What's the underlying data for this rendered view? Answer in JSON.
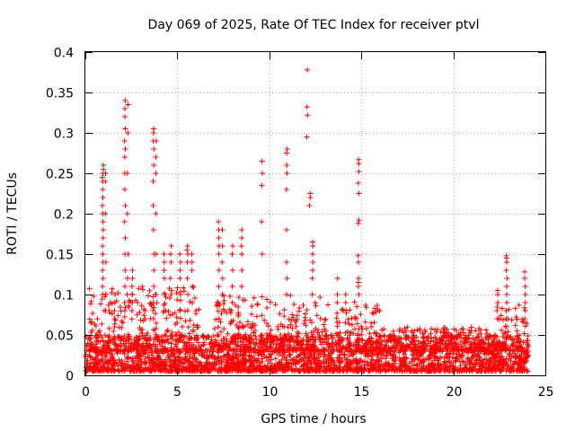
{
  "chart_data": {
    "type": "scatter",
    "title": "Day 069 of 2025, Rate Of TEC Index for receiver ptvl",
    "xlabel": "GPS time / hours",
    "ylabel": "ROTI / TECUs",
    "xlim": [
      0,
      25
    ],
    "ylim": [
      0,
      0.4
    ],
    "xticks": [
      0,
      5,
      10,
      15,
      20,
      25
    ],
    "xtick_labels": [
      "0",
      "5",
      "10",
      "15",
      "20",
      "25"
    ],
    "yticks": [
      0,
      0.05,
      0.1,
      0.15,
      0.2,
      0.25,
      0.3,
      0.35,
      0.4
    ],
    "ytick_labels": [
      "0",
      "0.05",
      "0.1",
      "0.15",
      "0.2",
      "0.25",
      "0.3",
      "0.35",
      "0.4"
    ],
    "grid": true,
    "marker": "+",
    "marker_color": "#ff0000",
    "series": [
      {
        "name": "ROTI",
        "note": "dense background of values mostly between 0.005 and 0.05 TECU/min from 0 to 24 h; enhanced spikes listed below",
        "baseline_range": [
          0.005,
          0.05
        ],
        "x_range": [
          0,
          24.1
        ],
        "spikes": [
          {
            "x": 0.95,
            "values": [
              0.26,
              0.255,
              0.25,
              0.245,
              0.24,
              0.23,
              0.22,
              0.21,
              0.2,
              0.19,
              0.18,
              0.17,
              0.16,
              0.15,
              0.14,
              0.13,
              0.12,
              0.11,
              0.1
            ]
          },
          {
            "x": 1.1,
            "values": [
              0.25,
              0.24,
              0.2,
              0.14,
              0.1,
              0.08
            ]
          },
          {
            "x": 1.6,
            "values": [
              0.1,
              0.09,
              0.08,
              0.07,
              0.06
            ]
          },
          {
            "x": 2.15,
            "values": [
              0.34,
              0.33,
              0.32,
              0.305,
              0.29,
              0.28,
              0.27,
              0.25,
              0.23,
              0.21,
              0.19,
              0.17,
              0.15,
              0.13,
              0.11,
              0.09,
              0.08
            ]
          },
          {
            "x": 2.3,
            "values": [
              0.335,
              0.3,
              0.25,
              0.2,
              0.15,
              0.12,
              0.1
            ]
          },
          {
            "x": 2.55,
            "values": [
              0.13,
              0.12,
              0.11,
              0.1,
              0.09,
              0.08
            ]
          },
          {
            "x": 3.7,
            "values": [
              0.305,
              0.3,
              0.29,
              0.28,
              0.26,
              0.24,
              0.21,
              0.18,
              0.15,
              0.13,
              0.11,
              0.09,
              0.07
            ]
          },
          {
            "x": 3.85,
            "values": [
              0.29,
              0.27,
              0.25,
              0.2,
              0.15,
              0.1
            ]
          },
          {
            "x": 4.3,
            "values": [
              0.15,
              0.14,
              0.13,
              0.12,
              0.1,
              0.08
            ]
          },
          {
            "x": 4.65,
            "values": [
              0.16,
              0.15,
              0.14,
              0.12,
              0.1
            ]
          },
          {
            "x": 5.15,
            "values": [
              0.15,
              0.14,
              0.13,
              0.12,
              0.1,
              0.08
            ]
          },
          {
            "x": 5.55,
            "values": [
              0.16,
              0.155,
              0.15,
              0.14,
              0.12,
              0.1,
              0.08
            ]
          },
          {
            "x": 5.8,
            "values": [
              0.15,
              0.14,
              0.13,
              0.11,
              0.09
            ]
          },
          {
            "x": 7.25,
            "values": [
              0.19,
              0.18,
              0.17,
              0.16,
              0.15,
              0.13,
              0.11,
              0.09,
              0.07
            ]
          },
          {
            "x": 7.45,
            "values": [
              0.18,
              0.16,
              0.14,
              0.12,
              0.1
            ]
          },
          {
            "x": 8.0,
            "values": [
              0.16,
              0.15,
              0.13,
              0.11,
              0.09
            ]
          },
          {
            "x": 8.5,
            "values": [
              0.18,
              0.17,
              0.16,
              0.15,
              0.13,
              0.11
            ]
          },
          {
            "x": 9.6,
            "values": [
              0.265,
              0.25,
              0.235,
              0.19,
              0.15
            ]
          },
          {
            "x": 10.95,
            "values": [
              0.28,
              0.275,
              0.26,
              0.25,
              0.23,
              0.18,
              0.14,
              0.12,
              0.1
            ]
          },
          {
            "x": 12.05,
            "values": [
              0.378,
              0.332,
              0.322,
              0.295
            ]
          },
          {
            "x": 12.2,
            "values": [
              0.225,
              0.22,
              0.21
            ]
          },
          {
            "x": 12.35,
            "values": [
              0.165,
              0.16,
              0.15,
              0.14,
              0.13,
              0.12,
              0.1
            ]
          },
          {
            "x": 14.85,
            "values": [
              0.267,
              0.262,
              0.252,
              0.238,
              0.225,
              0.192,
              0.188,
              0.148,
              0.14,
              0.12,
              0.115,
              0.11,
              0.1
            ]
          },
          {
            "x": 13.7,
            "values": [
              0.12,
              0.1,
              0.09
            ]
          },
          {
            "x": 14.15,
            "values": [
              0.1,
              0.09,
              0.08
            ]
          },
          {
            "x": 22.9,
            "values": [
              0.148,
              0.145,
              0.14,
              0.13,
              0.12,
              0.11,
              0.1,
              0.09,
              0.08,
              0.07
            ]
          },
          {
            "x": 22.4,
            "values": [
              0.105,
              0.1,
              0.09,
              0.08,
              0.07
            ]
          },
          {
            "x": 23.9,
            "values": [
              0.128,
              0.12,
              0.11,
              0.1,
              0.09,
              0.08,
              0.07
            ]
          }
        ],
        "moderate_activity_ranges": [
          {
            "x_range": [
              0.2,
              6.2
            ],
            "max": 0.11
          },
          {
            "x_range": [
              7.0,
              16.0
            ],
            "max": 0.1
          },
          {
            "x_range": [
              16.0,
              22.0
            ],
            "max": 0.06
          },
          {
            "x_range": [
              22.2,
              24.1
            ],
            "max": 0.09
          }
        ]
      }
    ]
  }
}
